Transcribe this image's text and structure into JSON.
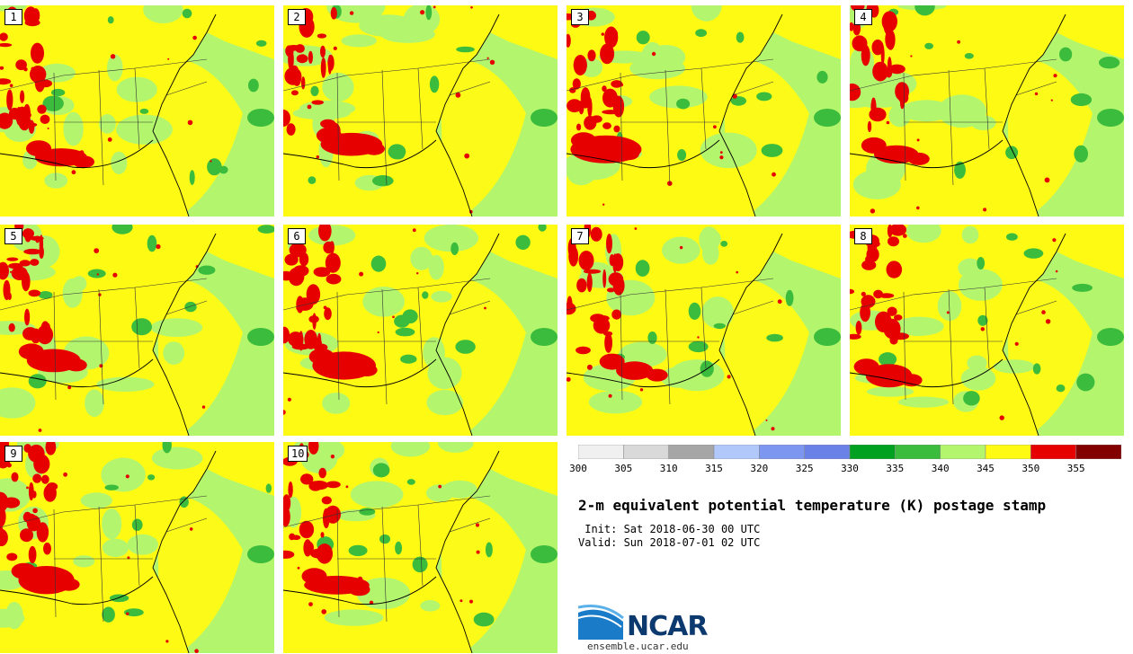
{
  "members": [
    "1",
    "2",
    "3",
    "4",
    "5",
    "6",
    "7",
    "8",
    "9",
    "10"
  ],
  "title": "2-m equivalent potential temperature (K) postage stamp",
  "init": " Init: Sat 2018-06-30 00 UTC",
  "valid": "Valid: Sun 2018-07-01 02 UTC",
  "colorbar": {
    "ticks": [
      "300",
      "305",
      "310",
      "315",
      "320",
      "325",
      "330",
      "335",
      "340",
      "345",
      "350",
      "355"
    ],
    "colors": [
      "#f0f0f0",
      "#d9d9d9",
      "#a6a6a6",
      "#b0c8fa",
      "#7d96f0",
      "#6a82e8",
      "#00a020",
      "#3cbc3c",
      "#b4f56e",
      "#fffa14",
      "#e60000",
      "#820000"
    ]
  },
  "logo": {
    "text": "NCAR",
    "url": "ensemble.ucar.edu"
  },
  "map_colors": {
    "ocean": "#b4f56e",
    "yellow": "#fffa14",
    "red": "#e60000",
    "green": "#3cbc3c"
  }
}
